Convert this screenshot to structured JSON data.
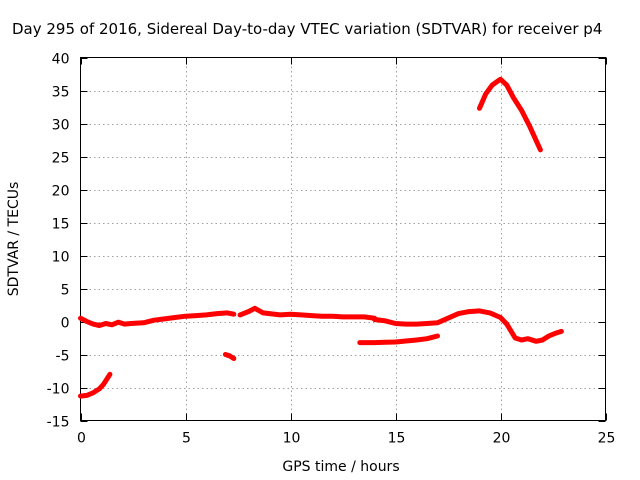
{
  "chart_data": {
    "type": "line",
    "title": "Day 295 of 2016, Sidereal Day-to-day VTEC variation (SDTVAR) for receiver p4",
    "xlabel": "GPS time / hours",
    "ylabel": "SDTVAR / TECUs",
    "xlim": [
      0,
      25
    ],
    "ylim": [
      -15,
      40
    ],
    "xticks": [
      0,
      5,
      10,
      15,
      20,
      25
    ],
    "yticks": [
      -15,
      -10,
      -5,
      0,
      5,
      10,
      15,
      20,
      25,
      30,
      35,
      40
    ],
    "grid": true,
    "legend": "none",
    "color": "#ff0000",
    "segments": [
      {
        "x": [
          0.0,
          0.3,
          0.6,
          0.9,
          1.2,
          1.5,
          1.8,
          2.1,
          2.4
        ],
        "y": [
          0.5,
          0.0,
          -0.4,
          -0.6,
          -0.3,
          -0.5,
          -0.1,
          -0.4,
          -0.3
        ]
      },
      {
        "x": [
          2.4,
          3.0,
          3.5,
          4.0,
          4.5,
          5.0,
          5.5,
          6.0,
          6.5,
          7.0,
          7.3
        ],
        "y": [
          -0.3,
          -0.2,
          0.2,
          0.4,
          0.6,
          0.8,
          0.9,
          1.0,
          1.2,
          1.3,
          1.1
        ]
      },
      {
        "x": [
          7.6,
          8.0,
          8.3,
          8.7,
          9.0,
          9.5,
          10.0,
          10.5,
          11.0,
          11.5,
          12.0,
          12.5,
          13.0,
          13.5,
          14.0
        ],
        "y": [
          1.0,
          1.5,
          2.0,
          1.3,
          1.2,
          1.0,
          1.1,
          1.0,
          0.9,
          0.8,
          0.8,
          0.7,
          0.7,
          0.7,
          0.5
        ]
      },
      {
        "x": [
          14.0,
          14.5,
          15.0,
          15.5,
          16.0,
          16.5,
          17.0,
          17.5,
          18.0,
          18.5,
          19.0,
          19.5,
          20.0,
          20.3
        ],
        "y": [
          0.3,
          0.1,
          -0.3,
          -0.4,
          -0.4,
          -0.3,
          -0.2,
          0.5,
          1.2,
          1.5,
          1.6,
          1.3,
          0.6,
          -0.4
        ]
      },
      {
        "x": [
          20.3,
          20.7,
          21.0,
          21.3,
          21.7,
          22.0,
          22.3,
          22.6,
          22.9
        ],
        "y": [
          -0.4,
          -2.5,
          -2.8,
          -2.6,
          -3.0,
          -2.8,
          -2.2,
          -1.8,
          -1.5
        ]
      },
      {
        "x": [
          0.0,
          0.3,
          0.6,
          0.9,
          1.1,
          1.4
        ],
        "y": [
          -11.3,
          -11.2,
          -10.8,
          -10.2,
          -9.5,
          -8.0
        ]
      },
      {
        "x": [
          6.9,
          7.1,
          7.3
        ],
        "y": [
          -5.0,
          -5.2,
          -5.6
        ]
      },
      {
        "x": [
          13.3,
          14.0,
          15.0,
          16.0,
          16.5,
          17.0
        ],
        "y": [
          -3.2,
          -3.2,
          -3.1,
          -2.8,
          -2.6,
          -2.2
        ]
      },
      {
        "x": [
          19.0,
          19.3,
          19.6,
          19.9,
          20.0,
          20.3,
          20.6,
          21.0,
          21.4,
          21.9
        ],
        "y": [
          32.3,
          34.5,
          35.8,
          36.5,
          36.7,
          35.8,
          34.0,
          32.0,
          29.5,
          26.0
        ]
      }
    ]
  }
}
